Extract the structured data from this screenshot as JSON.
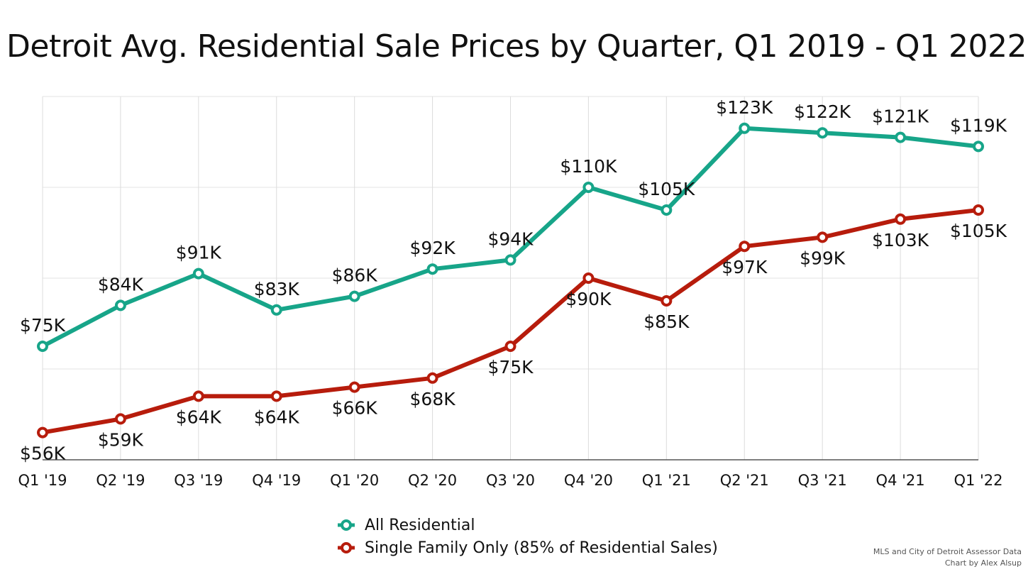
{
  "title": "Detroit Avg. Residential Sale Prices by Quarter, Q1 2019 - Q1 2022",
  "source_lines": [
    "MLS and City of Detroit Assessor Data",
    "Chart by Alex Alsup"
  ],
  "chart_data": {
    "type": "line",
    "title": "Detroit Avg. Residential Sale Prices by Quarter, Q1 2019 - Q1 2022",
    "xlabel": "",
    "ylabel": "",
    "categories": [
      "Q1 '19",
      "Q2 '19",
      "Q3 '19",
      "Q4 '19",
      "Q1 '20",
      "Q2 '20",
      "Q3 '20",
      "Q4 '20",
      "Q1 '21",
      "Q2 '21",
      "Q3 '21",
      "Q4 '21",
      "Q1 '22"
    ],
    "ylim": [
      50,
      130
    ],
    "grid": true,
    "legend_position": "bottom-center",
    "series": [
      {
        "name": "All Residential",
        "color": "#17a589",
        "values": [
          75,
          84,
          91,
          83,
          86,
          92,
          94,
          110,
          105,
          123,
          122,
          121,
          119
        ],
        "labels": [
          "$75K",
          "$84K",
          "$91K",
          "$83K",
          "$86K",
          "$92K",
          "$94K",
          "$110K",
          "$105K",
          "$123K",
          "$122K",
          "$121K",
          "$119K"
        ],
        "label_position": "above"
      },
      {
        "name": "Single Family Only (85% of Residential Sales)",
        "color": "#b71c0c",
        "values": [
          56,
          59,
          64,
          64,
          66,
          68,
          75,
          90,
          85,
          97,
          99,
          103,
          105
        ],
        "labels": [
          "$56K",
          "$59K",
          "$64K",
          "$64K",
          "$66K",
          "$68K",
          "$75K",
          "$90K",
          "$85K",
          "$97K",
          "$99K",
          "$103K",
          "$105K"
        ],
        "label_position": "below"
      }
    ]
  }
}
